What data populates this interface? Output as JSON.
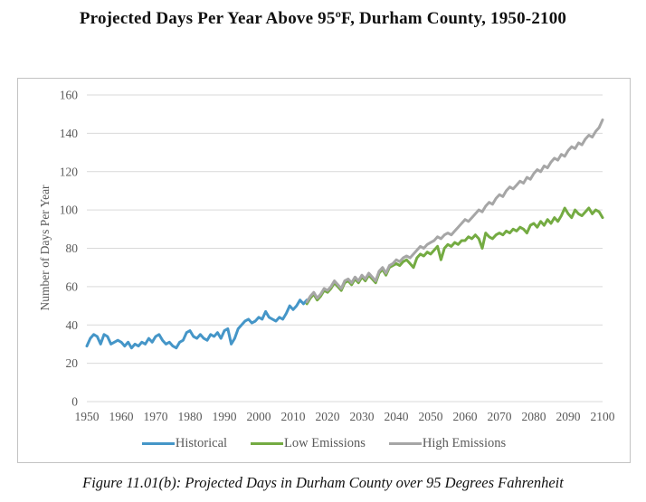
{
  "page": {
    "title": "Projected Days Per Year Above 95ºF, Durham County, 1950-2100",
    "caption": "Figure 11.01(b): Projected Days in Durham County over 95 Degrees Fahrenheit"
  },
  "colors": {
    "historical": "#4596c8",
    "low_emissions": "#74ab42",
    "high_emissions": "#a6a6a6",
    "gridline": "#d9d9d9",
    "axis_text": "#595959",
    "frame_border": "#c3c3c3",
    "title_text": "#111111"
  },
  "chart_data": {
    "type": "line",
    "title": "Projected Days Per Year Above 95ºF, Durham County, 1950-2100",
    "xlabel": "",
    "ylabel": "Number of Days Per Year",
    "xlim": [
      1950,
      2100
    ],
    "ylim": [
      0,
      160
    ],
    "grid": "horizontal",
    "legend_position": "bottom",
    "y_ticks": [
      0,
      20,
      40,
      60,
      80,
      100,
      120,
      140,
      160
    ],
    "x_ticks": [
      1950,
      1960,
      1970,
      1980,
      1990,
      2000,
      2010,
      2020,
      2030,
      2040,
      2050,
      2060,
      2070,
      2080,
      2090,
      2100
    ],
    "series": [
      {
        "name": "Historical",
        "color": "#4596c8",
        "start_year": 1950,
        "values": [
          29,
          33,
          35,
          34,
          30,
          35,
          34,
          30,
          31,
          32,
          31,
          29,
          31,
          28,
          30,
          29,
          31,
          30,
          33,
          31,
          34,
          35,
          32,
          30,
          31,
          29,
          28,
          31,
          32,
          36,
          37,
          34,
          33,
          35,
          33,
          32,
          35,
          34,
          36,
          33,
          37,
          38,
          30,
          33,
          38,
          40,
          42,
          43,
          41,
          42,
          44,
          43,
          47,
          44,
          43,
          42,
          44,
          43,
          46,
          50,
          48,
          50,
          53,
          51,
          53
        ]
      },
      {
        "name": "Low Emissions",
        "color": "#74ab42",
        "start_year": 2014,
        "values": [
          51,
          54,
          56,
          53,
          55,
          58,
          57,
          59,
          62,
          60,
          58,
          62,
          63,
          61,
          64,
          62,
          65,
          63,
          66,
          64,
          62,
          67,
          69,
          66,
          70,
          71,
          72,
          71,
          73,
          74,
          72,
          70,
          75,
          77,
          76,
          78,
          77,
          79,
          81,
          74,
          80,
          82,
          81,
          83,
          82,
          84,
          84,
          86,
          85,
          87,
          85,
          80,
          88,
          86,
          85,
          87,
          88,
          87,
          89,
          88,
          90,
          89,
          91,
          90,
          88,
          92,
          93,
          91,
          94,
          92,
          95,
          93,
          96,
          94,
          97,
          101,
          98,
          96,
          100,
          98,
          97,
          99,
          101,
          98,
          100,
          99,
          96
        ]
      },
      {
        "name": "High Emissions",
        "color": "#a6a6a6",
        "start_year": 2014,
        "values": [
          52,
          55,
          57,
          54,
          56,
          59,
          58,
          60,
          63,
          61,
          59,
          63,
          64,
          62,
          65,
          63,
          66,
          64,
          67,
          65,
          63,
          68,
          70,
          67,
          71,
          72,
          74,
          73,
          75,
          76,
          75,
          77,
          79,
          81,
          80,
          82,
          83,
          84,
          86,
          85,
          87,
          88,
          87,
          89,
          91,
          93,
          95,
          94,
          96,
          98,
          100,
          99,
          102,
          104,
          103,
          106,
          108,
          107,
          110,
          112,
          111,
          113,
          115,
          114,
          117,
          116,
          119,
          121,
          120,
          123,
          122,
          125,
          127,
          126,
          129,
          128,
          131,
          133,
          132,
          135,
          134,
          137,
          139,
          138,
          141,
          143,
          147
        ]
      }
    ]
  }
}
